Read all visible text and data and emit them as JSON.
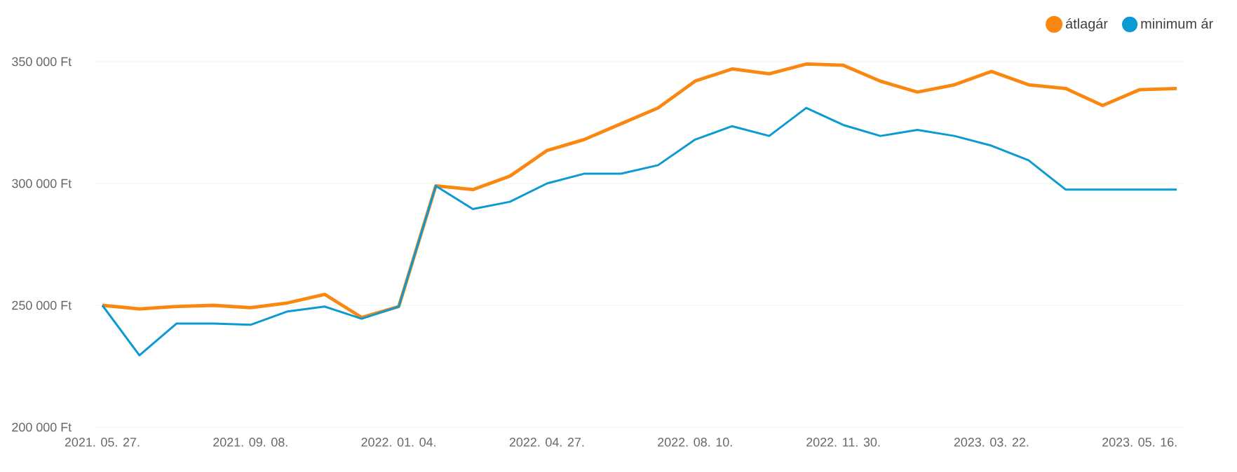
{
  "chart_data": {
    "type": "line",
    "categories": [
      "2021. 05. 27.",
      null,
      null,
      null,
      "2021. 09. 08.",
      null,
      null,
      null,
      "2022. 01. 04.",
      null,
      null,
      null,
      "2022. 04. 27.",
      null,
      null,
      null,
      "2022. 08. 10.",
      null,
      null,
      null,
      "2022. 11. 30.",
      null,
      null,
      null,
      "2023. 03. 22.",
      null,
      null,
      null,
      "2023. 05. 16.",
      null
    ],
    "series": [
      {
        "name": "átlagár",
        "color": "#f98710",
        "values": [
          250000,
          248500,
          249500,
          250000,
          249000,
          251000,
          254500,
          245000,
          249500,
          299000,
          297500,
          303000,
          313500,
          318000,
          324500,
          331000,
          342000,
          347000,
          345000,
          349000,
          348500,
          342000,
          337500,
          340500,
          346000,
          340500,
          339000,
          332000,
          338500,
          339000
        ]
      },
      {
        "name": "minimum ár",
        "color": "#0c9ad2",
        "values": [
          250000,
          229500,
          242500,
          242500,
          242000,
          247500,
          249500,
          244500,
          249500,
          299000,
          289500,
          292500,
          300000,
          304000,
          304000,
          307500,
          318000,
          323500,
          319500,
          331000,
          324000,
          319500,
          322000,
          319500,
          315500,
          309500,
          297500,
          297500,
          297500,
          297500
        ]
      }
    ],
    "ylim": [
      200000,
      350000
    ],
    "yticks": [
      {
        "value": 200000,
        "label": "200 000 Ft"
      },
      {
        "value": 250000,
        "label": "250 000 Ft"
      },
      {
        "value": 300000,
        "label": "300 000 Ft"
      },
      {
        "value": 350000,
        "label": "350 000 Ft"
      }
    ],
    "grid": "y",
    "legend": "top right"
  }
}
